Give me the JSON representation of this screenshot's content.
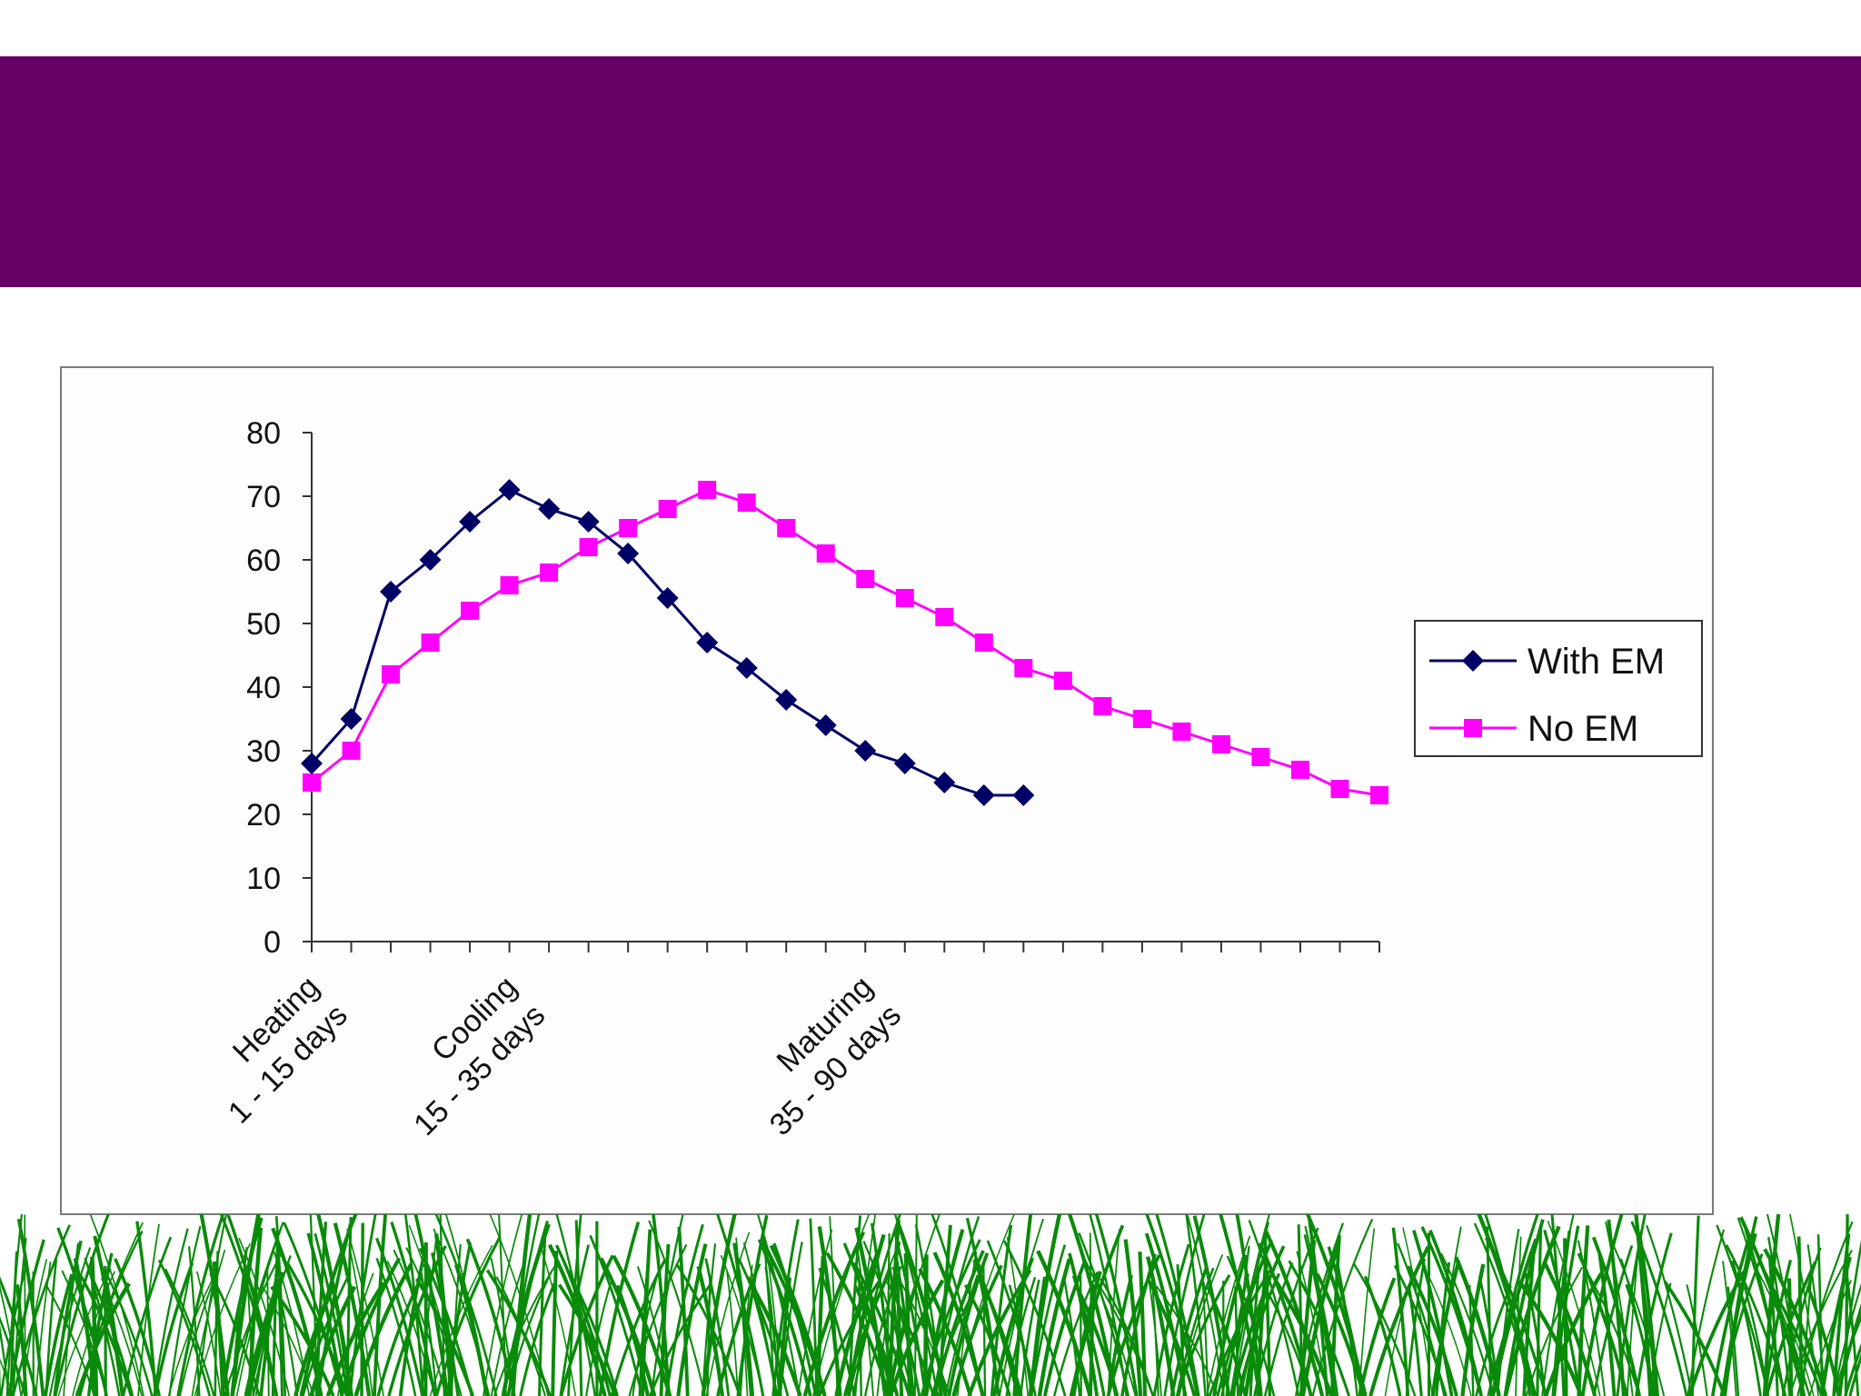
{
  "chart_data": {
    "type": "line",
    "title": "",
    "xlabel": "",
    "ylabel": "",
    "ylim": [
      0,
      80
    ],
    "yticks": [
      0,
      10,
      20,
      30,
      40,
      50,
      60,
      70,
      80
    ],
    "num_points": 28,
    "category_labels": [
      {
        "index": 0,
        "lines": [
          "Heating",
          "1 - 15 days"
        ]
      },
      {
        "index": 5,
        "lines": [
          "Cooling",
          "15 - 35 days"
        ]
      },
      {
        "index": 14,
        "lines": [
          "Maturing",
          "35 - 90 days"
        ]
      }
    ],
    "series": [
      {
        "name": "With EM",
        "color": "#000066",
        "marker": "diamond",
        "values": [
          28,
          35,
          55,
          60,
          66,
          71,
          68,
          66,
          61,
          54,
          47,
          43,
          38,
          34,
          30,
          28,
          25,
          23,
          23
        ]
      },
      {
        "name": "No EM",
        "color": "#ff00ff",
        "marker": "square",
        "values": [
          25,
          30,
          42,
          47,
          52,
          56,
          58,
          62,
          65,
          68,
          71,
          69,
          65,
          61,
          57,
          54,
          51,
          47,
          43,
          41,
          37,
          35,
          33,
          31,
          29,
          27,
          24,
          23
        ]
      }
    ],
    "legend_position": "right"
  },
  "decor": {
    "banner_color": "#660066",
    "grass_color": "#0a8a0a"
  }
}
